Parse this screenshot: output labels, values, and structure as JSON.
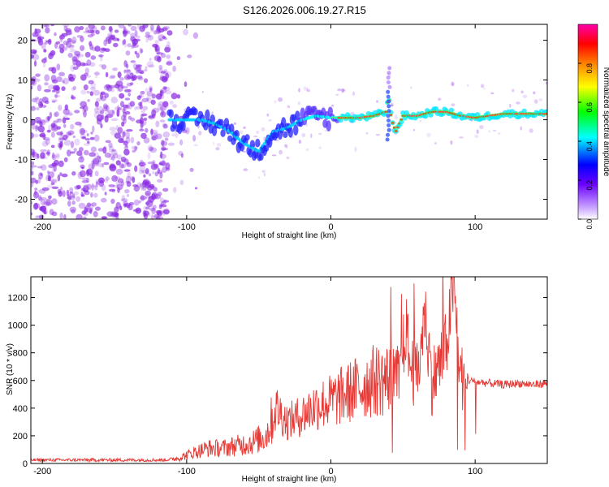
{
  "title": "S126.2026.006.19.27.R15",
  "colors": {
    "snr_line": "#e53935",
    "dots": "#8a2be2",
    "axis": "#000000"
  },
  "chart_data": [
    {
      "type": "heatmap",
      "name": "spectrogram",
      "title": "S126.2026.006.19.27.R15",
      "xlabel": "Height of straight line (km)",
      "ylabel": "Frequency (Hz)",
      "xlim": [
        -208,
        150
      ],
      "ylim": [
        -25,
        24
      ],
      "xticks": [
        -200,
        -100,
        0,
        100
      ],
      "xtick_labels": [
        "-200",
        "-100",
        "0",
        "100"
      ],
      "yticks": [
        -20,
        -10,
        0,
        10,
        20
      ],
      "ytick_labels": [
        "-20",
        "-10",
        "0",
        "10",
        "20"
      ],
      "colorbar": {
        "label": "Normalized spectral amplitude",
        "range": [
          0.0,
          1.0
        ],
        "ticks": [
          0.0,
          0.2,
          0.4,
          0.6,
          0.8
        ],
        "tick_labels": [
          "0.0",
          "0.2",
          "0.4",
          "0.6",
          "0.8"
        ]
      },
      "ridge": {
        "x": [
          -110,
          -100,
          -90,
          -80,
          -70,
          -60,
          -50,
          -40,
          -30,
          -20,
          -10,
          0,
          10,
          20,
          30,
          38,
          40,
          42,
          45,
          50,
          60,
          70,
          80,
          90,
          100,
          110,
          120,
          130,
          140,
          150
        ],
        "freq": [
          0,
          0,
          0,
          -1,
          -3,
          -6,
          -8,
          -3,
          -2,
          0,
          1,
          0.5,
          0.5,
          0.5,
          1,
          2,
          6,
          0,
          -3,
          1,
          1,
          2,
          2,
          1,
          0.5,
          1,
          1.5,
          1.5,
          1.5,
          1.5
        ]
      }
    },
    {
      "type": "line",
      "name": "snr",
      "xlabel": "Height of straight line (km)",
      "ylabel": "SNR (10 * v/v)",
      "xlim": [
        -208,
        150
      ],
      "ylim": [
        0,
        1350
      ],
      "xticks": [
        -200,
        -100,
        0,
        100
      ],
      "xtick_labels": [
        "-200",
        "-100",
        "0",
        "100"
      ],
      "yticks": [
        0,
        200,
        400,
        600,
        800,
        1000,
        1200
      ],
      "ytick_labels": [
        "0",
        "200",
        "400",
        "600",
        "800",
        "1000",
        "1200"
      ],
      "series": [
        {
          "name": "SNR",
          "x": [
            -208,
            -190,
            -170,
            -150,
            -130,
            -115,
            -105,
            -95,
            -85,
            -75,
            -65,
            -55,
            -45,
            -38,
            -30,
            -20,
            -10,
            0,
            10,
            20,
            30,
            40,
            48,
            52,
            55,
            60,
            65,
            70,
            75,
            80,
            85,
            90,
            95,
            100,
            110,
            120,
            130,
            140,
            150
          ],
          "y": [
            25,
            25,
            25,
            25,
            25,
            25,
            40,
            80,
            110,
            110,
            130,
            150,
            200,
            400,
            300,
            350,
            420,
            450,
            500,
            550,
            600,
            610,
            600,
            1000,
            700,
            620,
            1100,
            600,
            700,
            850,
            1300,
            620,
            600,
            590,
            580,
            570,
            580,
            570,
            580
          ]
        }
      ]
    }
  ]
}
